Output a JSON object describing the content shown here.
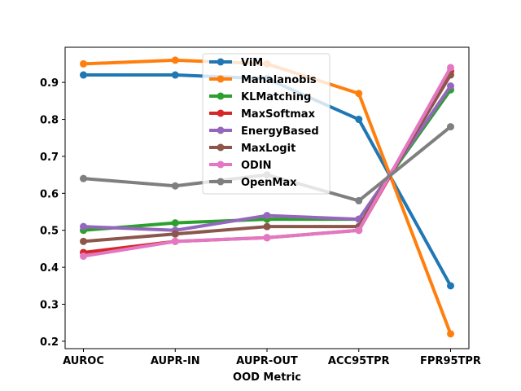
{
  "chart_data": {
    "type": "line",
    "title": "",
    "xlabel": "OOD Metric",
    "ylabel": "",
    "categories": [
      "AUROC",
      "AUPR-IN",
      "AUPR-OUT",
      "ACC95TPR",
      "FPR95TPR"
    ],
    "ylim": [
      0.18,
      0.995
    ],
    "yticks": [
      0.2,
      0.3,
      0.4,
      0.5,
      0.6,
      0.7,
      0.8,
      0.9
    ],
    "grid": false,
    "legend_position": "upper-center",
    "series": [
      {
        "name": "ViM",
        "color": "#1f77b4",
        "values": [
          0.92,
          0.92,
          0.91,
          0.8,
          0.35
        ]
      },
      {
        "name": "Mahalanobis",
        "color": "#ff7f0e",
        "values": [
          0.95,
          0.96,
          0.95,
          0.87,
          0.22
        ]
      },
      {
        "name": "KLMatching",
        "color": "#2ca02c",
        "values": [
          0.5,
          0.52,
          0.53,
          0.53,
          0.88
        ]
      },
      {
        "name": "MaxSoftmax",
        "color": "#d62728",
        "values": [
          0.44,
          0.47,
          0.48,
          0.5,
          0.93
        ]
      },
      {
        "name": "EnergyBased",
        "color": "#9467bd",
        "values": [
          0.51,
          0.5,
          0.54,
          0.53,
          0.89
        ]
      },
      {
        "name": "MaxLogit",
        "color": "#8c564b",
        "values": [
          0.47,
          0.49,
          0.51,
          0.51,
          0.92
        ]
      },
      {
        "name": "ODIN",
        "color": "#e377c2",
        "values": [
          0.43,
          0.47,
          0.48,
          0.5,
          0.94
        ]
      },
      {
        "name": "OpenMax",
        "color": "#7f7f7f",
        "values": [
          0.64,
          0.62,
          0.65,
          0.58,
          0.78
        ]
      }
    ]
  }
}
